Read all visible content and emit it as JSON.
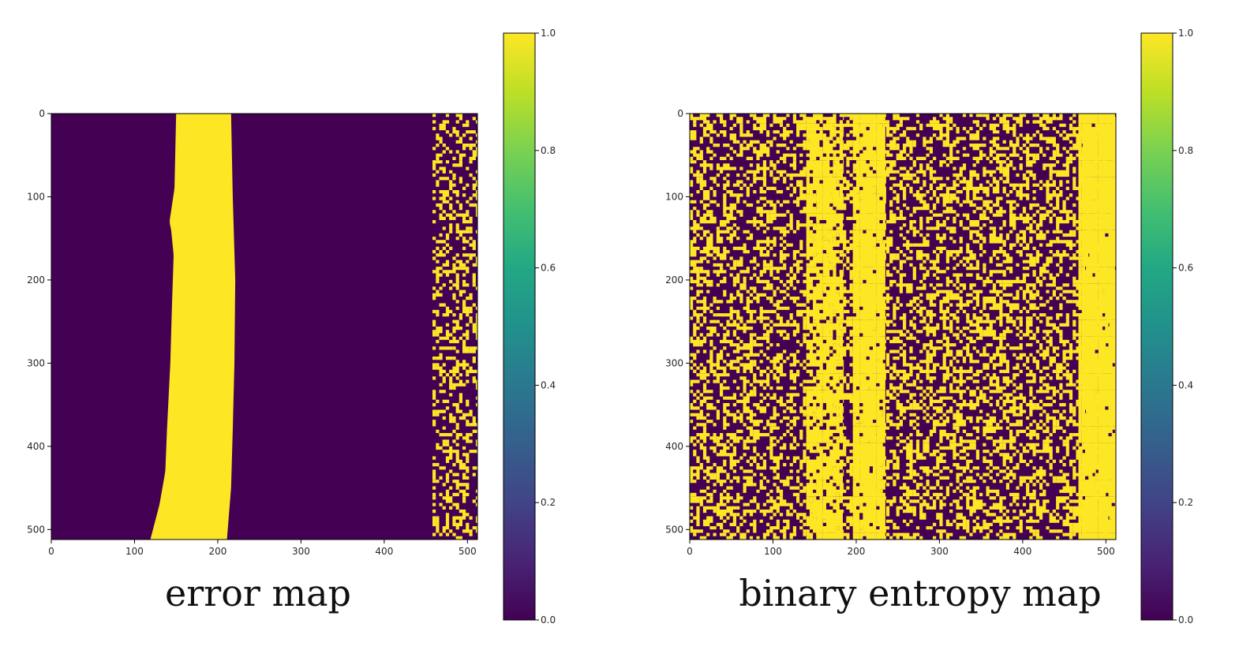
{
  "chart_data": [
    {
      "type": "heatmap",
      "caption": "error map",
      "xlim": [
        0,
        512
      ],
      "ylim": [
        512,
        0
      ],
      "xticks": [
        "0",
        "100",
        "200",
        "300",
        "400",
        "500"
      ],
      "yticks": [
        "0",
        "100",
        "200",
        "300",
        "400",
        "500"
      ],
      "colormap": "viridis",
      "colorbar": {
        "range": [
          0.0,
          1.0
        ],
        "ticks": [
          "0.0",
          "0.2",
          "0.4",
          "0.6",
          "0.8",
          "1.0"
        ]
      },
      "values": "binary (0 or 1)",
      "regions": [
        {
          "value": 1,
          "description": "solid band",
          "left_edge": [
            [
              0,
              150
            ],
            [
              90,
              148
            ],
            [
              130,
              142
            ],
            [
              140,
              144
            ],
            [
              170,
              147
            ],
            [
              230,
              145
            ],
            [
              300,
              143
            ],
            [
              380,
              139
            ],
            [
              430,
              137
            ],
            [
              470,
              130
            ],
            [
              512,
              119
            ]
          ],
          "right_edge": [
            [
              0,
              216
            ],
            [
              100,
              218
            ],
            [
              200,
              221
            ],
            [
              300,
              220
            ],
            [
              380,
              218
            ],
            [
              450,
              216
            ],
            [
              512,
              211
            ]
          ]
        },
        {
          "value": 1,
          "description": "speckle strip",
          "x_range": [
            458,
            512
          ],
          "density": 0.35
        }
      ]
    },
    {
      "type": "heatmap",
      "caption": "binary entropy map",
      "xlim": [
        0,
        512
      ],
      "ylim": [
        512,
        0
      ],
      "xticks": [
        "0",
        "100",
        "200",
        "300",
        "400",
        "500"
      ],
      "yticks": [
        "0",
        "100",
        "200",
        "300",
        "400",
        "500"
      ],
      "colormap": "viridis",
      "colorbar": {
        "range": [
          0.0,
          1.0
        ],
        "ticks": [
          "0.0",
          "0.2",
          "0.4",
          "0.6",
          "0.8",
          "1.0"
        ]
      },
      "values": "binary (0 or 1)",
      "regions": [
        {
          "value": 1,
          "description": "background speckle",
          "x_range": [
            0,
            512
          ],
          "density": 0.42
        },
        {
          "value": 1,
          "description": "left dense band",
          "x_range": [
            140,
            185
          ],
          "density": 0.75
        },
        {
          "value": 1,
          "description": "centre solid band",
          "x_range": [
            196,
            235
          ],
          "density": 0.92
        },
        {
          "value": 1,
          "description": "right solid band",
          "x_range": [
            467,
            512
          ],
          "density": 0.97
        }
      ]
    }
  ],
  "colors": {
    "low": "#440154",
    "high": "#fde725"
  }
}
